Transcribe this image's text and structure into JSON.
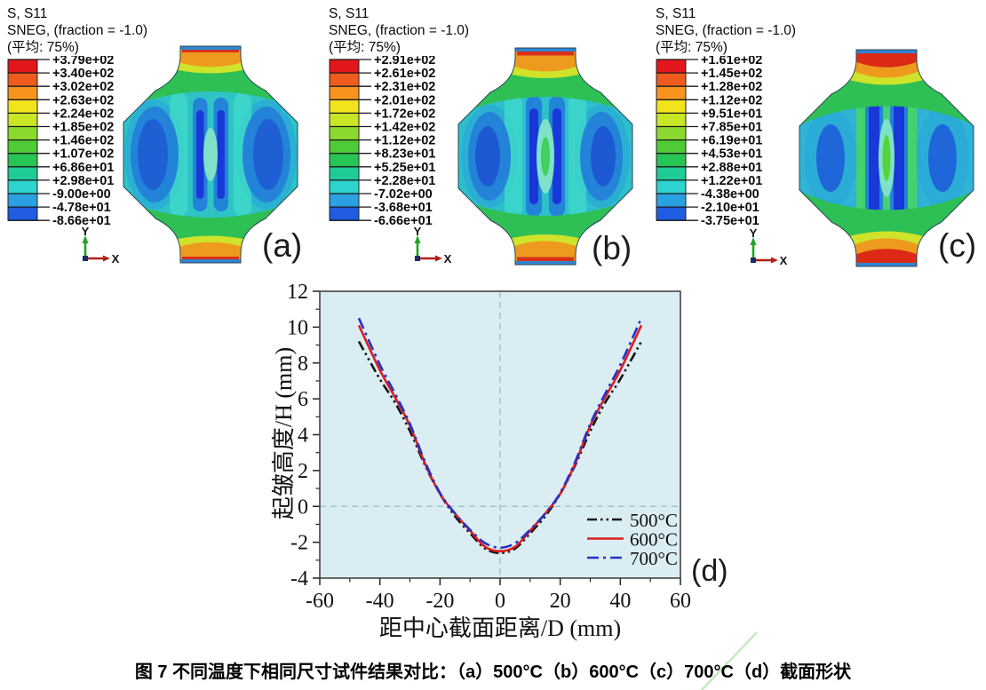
{
  "figure": {
    "caption": "图 7 不同温度下相同尺寸试件结果对比：（a）500°C（b）600°C（c）700°C（d）截面形状"
  },
  "triad": {
    "y": "Y",
    "x": "X"
  },
  "colorbar_colors": [
    "#e3161b",
    "#ee5b1c",
    "#f6941e",
    "#f2e41c",
    "#c6e626",
    "#8bd92e",
    "#4ecb35",
    "#27c553",
    "#1fcb96",
    "#2cd3cf",
    "#2aa1e0",
    "#1f5ce0"
  ],
  "panels": [
    {
      "label": "(a)",
      "title": "S, S11",
      "subtitle": "SNEG, (fraction = -1.0)",
      "avg": "(平均: 75%)",
      "legend_values": [
        "+3.79e+02",
        "+3.40e+02",
        "+3.02e+02",
        "+2.63e+02",
        "+2.24e+02",
        "+1.85e+02",
        "+1.46e+02",
        "+1.07e+02",
        "+6.86e+01",
        "+2.98e+01",
        "-9.00e+00",
        "-4.78e+01",
        "-8.66e+01"
      ]
    },
    {
      "label": "(b)",
      "title": "S, S11",
      "subtitle": "SNEG, (fraction = -1.0)",
      "avg": "(平均: 75%)",
      "legend_values": [
        "+2.91e+02",
        "+2.61e+02",
        "+2.31e+02",
        "+2.01e+02",
        "+1.72e+02",
        "+1.42e+02",
        "+1.12e+02",
        "+8.23e+01",
        "+5.25e+01",
        "+2.28e+01",
        "-7.02e+00",
        "-3.68e+01",
        "-6.66e+01"
      ]
    },
    {
      "label": "(c)",
      "title": "S, S11",
      "subtitle": "SNEG, (fraction = -1.0)",
      "avg": "(平均: 75%)",
      "legend_values": [
        "+1.61e+02",
        "+1.45e+02",
        "+1.28e+02",
        "+1.12e+02",
        "+9.51e+01",
        "+7.85e+01",
        "+6.19e+01",
        "+4.53e+01",
        "+2.88e+01",
        "+1.22e+01",
        "-4.38e+00",
        "-2.10e+01",
        "-3.75e+01"
      ]
    }
  ],
  "chart_data": {
    "type": "line",
    "panel_label": "(d)",
    "title": "",
    "xlabel": "距中心截面距离/D (mm)",
    "ylabel": "起皱高度/H (mm)",
    "xlim": [
      -60,
      60
    ],
    "ylim": [
      -4,
      12
    ],
    "xticks": [
      -60,
      -40,
      -20,
      0,
      20,
      40,
      60
    ],
    "yticks": [
      -4,
      -2,
      0,
      2,
      4,
      6,
      8,
      10,
      12
    ],
    "xticks_minor": [
      -50,
      -30,
      -10,
      10,
      30,
      50
    ],
    "yticks_minor": [
      -3,
      -1,
      1,
      3,
      5,
      7,
      9,
      11
    ],
    "grid": "dashed zero lines at x=0 and y=0",
    "legend_position": "lower right",
    "plot_bg": "#daedf3",
    "zero_line_color": "#8fbfc4",
    "x": [
      -47,
      -40,
      -35,
      -30,
      -25,
      -20,
      -15,
      -10,
      -5,
      0,
      5,
      10,
      15,
      20,
      25,
      30,
      35,
      40,
      47
    ],
    "series": [
      {
        "name": "500°C",
        "color": "#141414",
        "style": "dash-dot-dot",
        "values": [
          9.2,
          7.1,
          5.8,
          4.2,
          2.3,
          0.7,
          -0.55,
          -1.5,
          -2.35,
          -2.6,
          -2.35,
          -1.5,
          -0.55,
          0.7,
          2.3,
          4.2,
          5.8,
          7.1,
          9.2
        ]
      },
      {
        "name": "600°C",
        "color": "#de1e1e",
        "style": "solid",
        "values": [
          10.1,
          7.6,
          6.1,
          4.5,
          2.4,
          0.7,
          -0.4,
          -1.35,
          -2.25,
          -2.5,
          -2.25,
          -1.35,
          -0.4,
          0.7,
          2.4,
          4.5,
          6.1,
          7.6,
          10.1
        ]
      },
      {
        "name": "700°C",
        "color": "#2531c8",
        "style": "dash-dot",
        "values": [
          10.5,
          7.9,
          6.3,
          4.6,
          2.5,
          0.75,
          -0.4,
          -1.3,
          -2.05,
          -2.3,
          -2.05,
          -1.3,
          -0.4,
          0.75,
          2.5,
          4.6,
          6.3,
          7.9,
          10.5
        ]
      }
    ]
  }
}
